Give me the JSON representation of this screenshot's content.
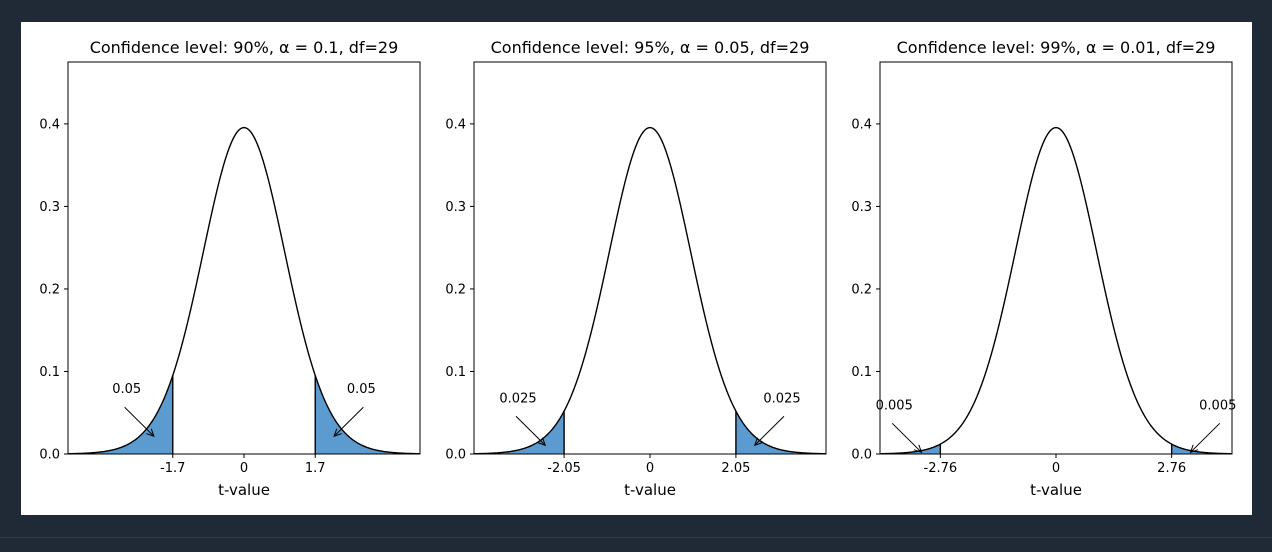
{
  "theme": {
    "page_background": "#1f2a36",
    "figure_background": "#ffffff",
    "fill_color": "#5b9bd0",
    "line_color": "#000000"
  },
  "chart_data": [
    {
      "type": "area",
      "title": "Confidence level: 90%, α = 0.1, df=29",
      "xlabel": "t-value",
      "ylabel": "",
      "df": 29,
      "alpha": 0.1,
      "critical_value": 1.7,
      "xlim": [
        -4.2,
        4.2
      ],
      "ylim": [
        0,
        0.475
      ],
      "xticks": [
        "-1.7",
        "0",
        "1.7"
      ],
      "xtick_values": [
        -1.7,
        0,
        1.7
      ],
      "yticks": [
        "0.0",
        "0.1",
        "0.2",
        "0.3",
        "0.4"
      ],
      "ytick_values": [
        0,
        0.1,
        0.2,
        0.3,
        0.4
      ],
      "tail_labels": [
        "0.05",
        "0.05"
      ],
      "shaded_tails": "both"
    },
    {
      "type": "area",
      "title": "Confidence level: 95%, α = 0.05, df=29",
      "xlabel": "t-value",
      "ylabel": "",
      "df": 29,
      "alpha": 0.05,
      "critical_value": 2.05,
      "xlim": [
        -4.2,
        4.2
      ],
      "ylim": [
        0,
        0.475
      ],
      "xticks": [
        "-2.05",
        "0",
        "2.05"
      ],
      "xtick_values": [
        -2.05,
        0,
        2.05
      ],
      "yticks": [
        "0.0",
        "0.1",
        "0.2",
        "0.3",
        "0.4"
      ],
      "ytick_values": [
        0,
        0.1,
        0.2,
        0.3,
        0.4
      ],
      "tail_labels": [
        "0.025",
        "0.025"
      ],
      "shaded_tails": "both"
    },
    {
      "type": "area",
      "title": "Confidence level: 99%, α = 0.01, df=29",
      "xlabel": "t-value",
      "ylabel": "",
      "df": 29,
      "alpha": 0.01,
      "critical_value": 2.76,
      "xlim": [
        -4.2,
        4.2
      ],
      "ylim": [
        0,
        0.475
      ],
      "xticks": [
        "-2.76",
        "0",
        "2.76"
      ],
      "xtick_values": [
        -2.76,
        0,
        2.76
      ],
      "yticks": [
        "0.0",
        "0.1",
        "0.2",
        "0.3",
        "0.4"
      ],
      "ytick_values": [
        0,
        0.1,
        0.2,
        0.3,
        0.4
      ],
      "tail_labels": [
        "0.005",
        "0.005"
      ],
      "shaded_tails": "both"
    }
  ]
}
